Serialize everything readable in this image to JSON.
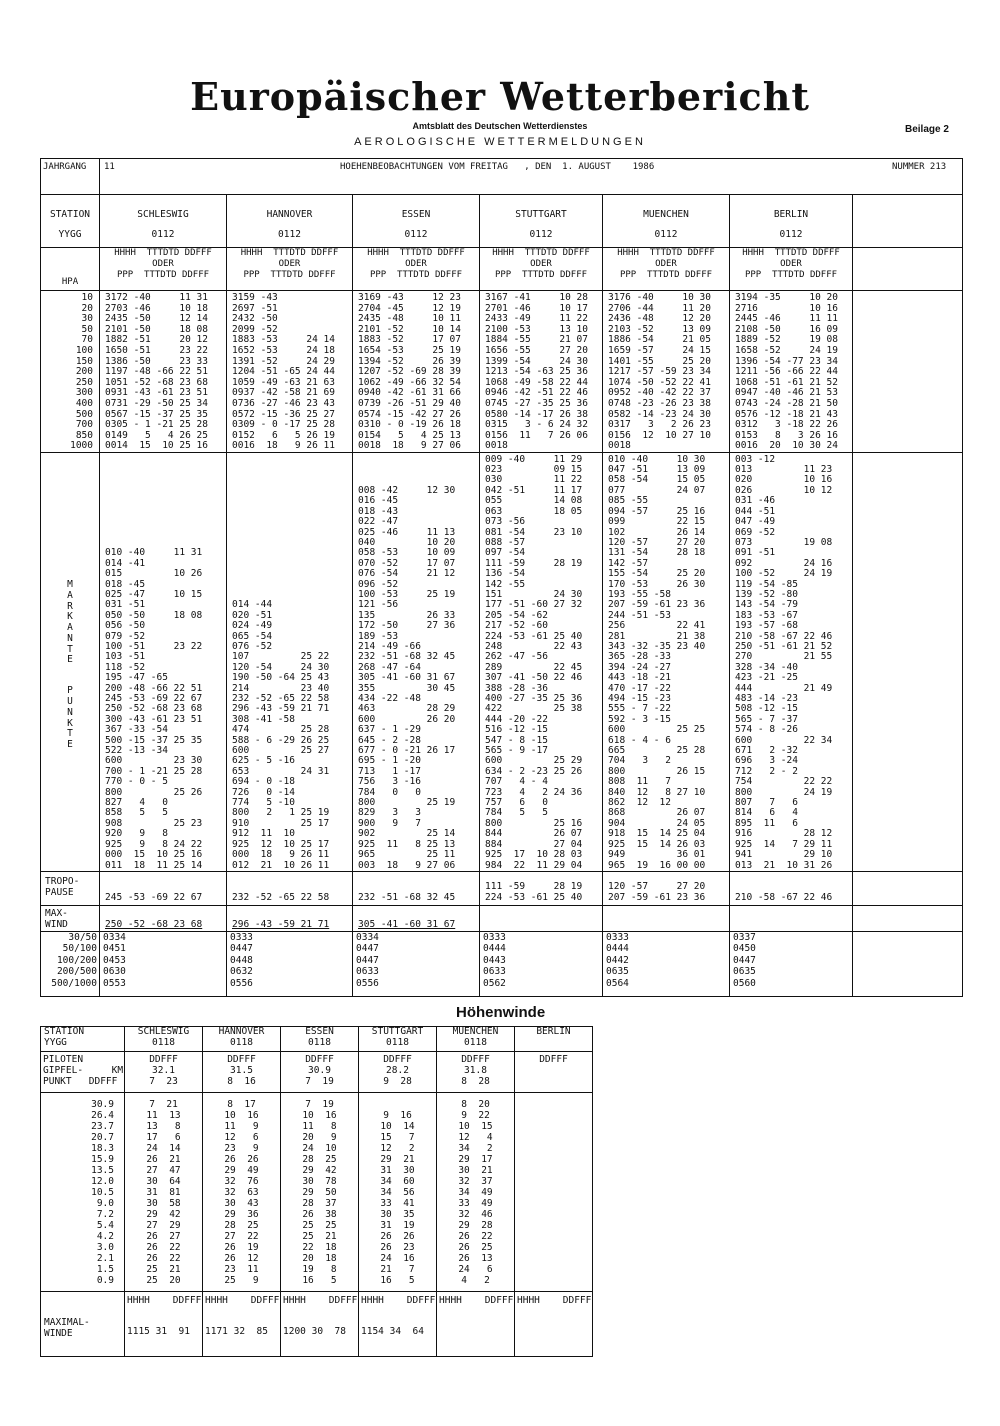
{
  "header": {
    "title": "Europäischer Wetterbericht",
    "subtitle": "Amtsblatt des Deutschen Wetterdienstes",
    "beilage": "Beilage 2",
    "section": "AEROLOGISCHE WETTERMELDUNGEN",
    "jahrgang_label": "JAHRGANG",
    "jahrgang": "11",
    "observation": "HOEHENBEOBACHTUNGEN VOM FREITAG   , DEN  1. AUGUST    1986",
    "nummer": "NUMMER 213"
  },
  "labels": {
    "station": "STATION",
    "yygg": "YYGG",
    "hpa": "HPA",
    "markante": "MARKANTE",
    "punkte": "PUNKTE",
    "tropo": [
      "TROPO-",
      "PAUSE"
    ],
    "maxwind": [
      "MAX-",
      "WIND"
    ],
    "col_header": [
      "HHHH  TTTDTD DDFFF",
      "ODER",
      "PPP  TTTDTD DDFFF"
    ]
  },
  "levels": [
    "10",
    "20",
    "30",
    "50",
    "70",
    "100",
    "150",
    "200",
    "250",
    "300",
    "400",
    "500",
    "700",
    "850",
    "1000"
  ],
  "shear_labels": [
    "30/50",
    "50/100",
    "100/200",
    "200/500",
    "500/1000"
  ],
  "stations": [
    {
      "name": "SCHLESWIG",
      "yygg": "0112",
      "standard": [
        "3172 -40     11 31",
        "2703 -46     10 18",
        "2435 -50     12 14",
        "2101 -50     18 08",
        "1882 -51     20 12",
        "1650 -51     23 22",
        "1386 -50     23 33",
        "1197 -48 -66 22 51",
        "1051 -52 -68 23 68",
        "0931 -43 -61 23 51",
        "0731 -29 -50 25 34",
        "0567 -15 -37 25 35",
        "0305 - 1 -21 25 28",
        "0149   5   4 26 25",
        "0014  15  10 25 16"
      ],
      "significant": [
        "010 -40     11 31",
        "014 -41",
        "015         10 26",
        "018 -45",
        "025 -47     10 15",
        "031 -51",
        "050 -50     18 08",
        "056 -50",
        "079 -52",
        "100 -51     23 22",
        "103 -51",
        "118 -52",
        "195 -47 -65",
        "200 -48 -66 22 51",
        "245 -53 -69 22 67",
        "250 -52 -68 23 68",
        "300 -43 -61 23 51",
        "367 -33 -54",
        "500 -15 -37 25 35",
        "522 -13 -34",
        "600         23 30",
        "700 - 1 -21 25 28",
        "770 - 0 - 5",
        "800         25 26",
        "827   4   0",
        "858   5   5",
        "908         25 23",
        "920   9   8",
        "925   9   8 24 22",
        "000  15  10 25 16",
        "011  18  11 25 14"
      ],
      "tropopause": [
        "245 -53 -69 22 67"
      ],
      "maxwind": "250 -52 -68 23 68",
      "shear": [
        "0334",
        "0451",
        "0453",
        "0630",
        "0553"
      ]
    },
    {
      "name": "HANNOVER",
      "yygg": "0112",
      "standard": [
        "3159 -43",
        "2697 -51",
        "2432 -50",
        "2099 -52",
        "1883 -53     24 14",
        "1652 -53     24 18",
        "1391 -52     24 29",
        "1204 -51 -65 24 44",
        "1059 -49 -63 21 63",
        "0937 -42 -58 21 69",
        "0736 -27 -46 23 43",
        "0572 -15 -36 25 27",
        "0309 - 0 -17 25 28",
        "0152   6   5 26 19",
        "0016  18   9 26 11"
      ],
      "significant": [
        "014 -44",
        "020 -51",
        "024 -49",
        "065 -54",
        "076 -52",
        "107         25 22",
        "120 -54     24 30",
        "190 -50 -64 25 43",
        "214         23 40",
        "232 -52 -65 22 58",
        "296 -43 -59 21 71",
        "308 -41 -58",
        "474         25 28",
        "588 - 6 -29 26 25",
        "600         25 27",
        "625 - 5 -16",
        "653         24 31",
        "694 - 0 -18",
        "726   0 -14",
        "774   5 -10",
        "800   2   1 25 19",
        "910         25 17",
        "912  11  10",
        "925  12  10 25 17",
        "000  18   9 26 11",
        "012  21  10 26 11"
      ],
      "tropopause": [
        "232 -52 -65 22 58"
      ],
      "maxwind": "296 -43 -59 21 71",
      "shear": [
        "0333",
        "0447",
        "0448",
        "0632",
        "0556"
      ]
    },
    {
      "name": "ESSEN",
      "yygg": "0112",
      "standard": [
        "3169 -43     12 23",
        "2704 -45     12 19",
        "2435 -48     10 11",
        "2101 -52     10 14",
        "1883 -52     17 07",
        "1654 -53     25 19",
        "1394 -52     26 39",
        "1207 -52 -69 28 39",
        "1062 -49 -66 32 54",
        "0940 -42 -61 31 66",
        "0739 -26 -51 29 40",
        "0574 -15 -42 27 26",
        "0310 - 0 -19 26 18",
        "0154   5   4 25 13",
        "0018  18   9 27 06"
      ],
      "significant": [
        "008 -42     12 30",
        "016 -45",
        "018 -43",
        "022 -47",
        "025 -46     11 13",
        "040         10 20",
        "058 -53     10 09",
        "070 -52     17 07",
        "076 -54     21 12",
        "096 -52",
        "100 -53     25 19",
        "121 -56",
        "135         26 33",
        "172 -50     27 36",
        "189 -53",
        "214 -49 -66",
        "232 -51 -68 32 45",
        "268 -47 -64",
        "305 -41 -60 31 67",
        "355         30 45",
        "434 -22 -48",
        "463         28 29",
        "600         26 20",
        "637 - 1 -29",
        "645 - 2 -28",
        "677 - 0 -21 26 17",
        "695 - 1 -20",
        "713   1 -17",
        "756   3 -16",
        "784   0   0",
        "800         25 19",
        "829   3   3",
        "900   9   7",
        "902         25 14",
        "925  11   8 25 13",
        "965         25 11",
        "003  18   9 27 06"
      ],
      "tropopause": [
        "232 -51 -68 32 45"
      ],
      "maxwind": "305 -41 -60 31 67",
      "shear": [
        "0334",
        "0447",
        "0447",
        "0633",
        "0556"
      ]
    },
    {
      "name": "STUTTGART",
      "yygg": "0112",
      "standard": [
        "3167 -41     10 28",
        "2701 -46     10 17",
        "2433 -49     11 22",
        "2100 -53     13 10",
        "1884 -55     21 07",
        "1656 -55     27 20",
        "1399 -54     24 30",
        "1213 -54 -63 25 36",
        "1068 -49 -58 22 44",
        "0946 -42 -51 22 46",
        "0745 -27 -35 25 36",
        "0580 -14 -17 26 38",
        "0315   3 - 6 24 32",
        "0156  11   7 26 06",
        "0018"
      ],
      "significant": [
        "009 -40     11 29",
        "023         09 15",
        "030         11 22",
        "042 -51     11 17",
        "055         14 08",
        "063         18 05",
        "073 -56",
        "081 -54     23 10",
        "088 -57",
        "097 -54",
        "111 -59     28 19",
        "136 -54",
        "142 -55",
        "151         24 30",
        "177 -51 -60 27 32",
        "205 -54 -62",
        "217 -52 -60",
        "224 -53 -61 25 40",
        "248         22 43",
        "262 -47 -56",
        "289         22 45",
        "307 -41 -50 22 46",
        "388 -28 -36",
        "400 -27 -35 25 36",
        "422         25 38",
        "444 -20 -22",
        "516 -12 -15",
        "547 - 8 -15",
        "565 - 9 -17",
        "600         25 29",
        "634 - 2 -23 25 26",
        "707   4 - 4",
        "723   4   2 24 36",
        "757   6   0",
        "784   5   5",
        "800         25 16",
        "844         26 07",
        "884         27 04",
        "925  17  10 28 03",
        "984  22  11 29 04"
      ],
      "tropopause": [
        "111 -59     28 19",
        "224 -53 -61 25 40"
      ],
      "maxwind": "",
      "shear": [
        "0333",
        "0444",
        "0443",
        "0633",
        "0562"
      ]
    },
    {
      "name": "MUENCHEN",
      "yygg": "0112",
      "standard": [
        "3176 -40     10 30",
        "2706 -44     11 20",
        "2436 -48     12 20",
        "2103 -52     13 09",
        "1886 -54     21 05",
        "1659 -57     24 15",
        "1401 -55     25 20",
        "1217 -57 -59 23 34",
        "1074 -50 -52 22 41",
        "0952 -40 -42 22 37",
        "0748 -23 -26 23 38",
        "0582 -14 -23 24 30",
        "0317   3   2 26 23",
        "0156  12  10 27 10",
        "0018"
      ],
      "significant": [
        "010 -40     10 30",
        "047 -51     13 09",
        "058 -54     15 05",
        "077         24 07",
        "085 -55",
        "094 -57     25 16",
        "099         22 15",
        "102         26 14",
        "120 -57     27 20",
        "131 -54     28 18",
        "142 -57",
        "155 -54     25 20",
        "170 -53     26 30",
        "193 -55 -58",
        "207 -59 -61 23 36",
        "244 -51 -53",
        "256         22 41",
        "281         21 38",
        "343 -32 -35 23 40",
        "365 -28 -33",
        "394 -24 -27",
        "443 -18 -21",
        "470 -17 -22",
        "494 -15 -23",
        "555 - 7 -22",
        "592 - 3 -15",
        "600         25 25",
        "618 - 4 - 6",
        "665         25 28",
        "704   3   2",
        "800         26 15",
        "808  11   7",
        "840  12   8 27 10",
        "862  12  12",
        "868         26 07",
        "904         24 05",
        "918  15  14 25 04",
        "925  15  14 26 03",
        "949         36 01",
        "965  19  16 00 00"
      ],
      "tropopause": [
        "120 -57     27 20",
        "207 -59 -61 23 36"
      ],
      "maxwind": "",
      "shear": [
        "0333",
        "0444",
        "0442",
        "0635",
        "0564"
      ]
    },
    {
      "name": "BERLIN",
      "yygg": "0112",
      "standard": [
        "3194 -35     10 20",
        "2716         10 16",
        "2445 -46     11 11",
        "2108 -50     16 09",
        "1889 -52     19 08",
        "1658 -52     24 19",
        "1396 -54 -77 23 34",
        "1211 -56 -66 22 44",
        "1068 -51 -61 21 52",
        "0947 -40 -46 21 53",
        "0743 -24 -28 21 50",
        "0576 -12 -18 21 43",
        "0312   3 -18 22 26",
        "0153   8   3 26 16",
        "0016  20  10 30 24"
      ],
      "significant": [
        "003 -12",
        "013         11 23",
        "020         10 16",
        "026         10 12",
        "031 -46",
        "044 -51",
        "047 -49",
        "069 -52",
        "073         19 08",
        "091 -51",
        "092         24 16",
        "100 -52     24 19",
        "119 -54 -85",
        "139 -52 -80",
        "143 -54 -79",
        "183 -53 -67",
        "193 -57 -68",
        "210 -58 -67 22 46",
        "250 -51 -61 21 52",
        "270         21 55",
        "328 -34 -40",
        "423 -21 -25",
        "444         21 49",
        "483 -14 -23",
        "508 -12 -15",
        "565 - 7 -37",
        "574 - 8 -26",
        "600         22 34",
        "671   2 -32",
        "696   3 -24",
        "712   2 - 2",
        "754         22 22",
        "800         24 19",
        "807   7   6",
        "814   6   4",
        "895  11   6",
        "916         28 12",
        "925  14   7 29 11",
        "941         29 10",
        "013  21  10 31 26"
      ],
      "tropopause": [
        "",
        "210 -58 -67 22 46"
      ],
      "maxwind": "",
      "shear": [
        "0337",
        "0450",
        "0447",
        "0635",
        "0560"
      ]
    }
  ],
  "hoehenwinde": {
    "title": "Höhenwinde",
    "station_label": [
      "STATION",
      "YYGG"
    ],
    "piloten_label": [
      "PILOTEN",
      "GIPFEL-     KM",
      "PUNKT   DDFFF"
    ],
    "max_label": [
      "MAXIMAL-",
      "WINDE"
    ],
    "ddfff": "DDFFF",
    "max_header": "HHHH    DDFFF",
    "heights": [
      "30.9",
      "26.4",
      "23.7",
      "20.7",
      "18.3",
      "15.9",
      "13.5",
      "12.0",
      "10.5",
      "9.0",
      "7.2",
      "5.4",
      "4.2",
      "3.0",
      "2.1",
      "1.5",
      "0.9"
    ],
    "stations": [
      {
        "name": "SCHLESWIG",
        "yygg": "0118",
        "km": "32.1",
        "gipfel": "7  23",
        "max": "1115 31  91",
        "winds": [
          "7  21",
          "11  13",
          "13   8",
          "17   6",
          "24  14",
          "26  21",
          "27  47",
          "30  64",
          "31  81",
          "30  58",
          "29  42",
          "27  29",
          "26  27",
          "26  22",
          "26  22",
          "25  21",
          "25  20"
        ]
      },
      {
        "name": "HANNOVER",
        "yygg": "0118",
        "km": "31.5",
        "gipfel": "8  16",
        "max": "1171 32  85",
        "winds": [
          "8  17",
          "10  16",
          "11   9",
          "12   6",
          "23   9",
          "26  26",
          "29  49",
          "32  76",
          "32  63",
          "30  43",
          "29  36",
          "28  25",
          "27  22",
          "26  19",
          "26  12",
          "23  11",
          "25   9"
        ]
      },
      {
        "name": "ESSEN",
        "yygg": "0118",
        "km": "30.9",
        "gipfel": "7  19",
        "max": "1200 30  78",
        "winds": [
          "7  19",
          "10  16",
          "11   8",
          "20   9",
          "24  10",
          "28  25",
          "29  42",
          "30  78",
          "29  50",
          "28  37",
          "26  38",
          "25  25",
          "25  21",
          "22  18",
          "20  18",
          "19   8",
          "16   5"
        ]
      },
      {
        "name": "STUTTGART",
        "yygg": "0118",
        "km": "28.2",
        "gipfel": "9  28",
        "max": "1154 34  64",
        "winds": [
          "",
          "9  16",
          "10  14",
          "15   7",
          "12   2",
          "29  21",
          "31  30",
          "34  60",
          "34  56",
          "33  41",
          "30  35",
          "31  19",
          "26  26",
          "26  23",
          "24  16",
          "21   7",
          "16   5"
        ]
      },
      {
        "name": "MUENCHEN",
        "yygg": "0118",
        "km": "31.8",
        "gipfel": "8  28",
        "max": "",
        "winds": [
          "8  20",
          "9  22",
          "10  15",
          "12   4",
          "34   2",
          "29  17",
          "30  21",
          "32  37",
          "34  49",
          "33  49",
          "32  46",
          "29  28",
          "26  22",
          "26  25",
          "26  13",
          "24   6",
          "4   2"
        ]
      },
      {
        "name": "BERLIN",
        "yygg": "",
        "km": "",
        "gipfel": "",
        "max": "",
        "winds": []
      }
    ]
  }
}
